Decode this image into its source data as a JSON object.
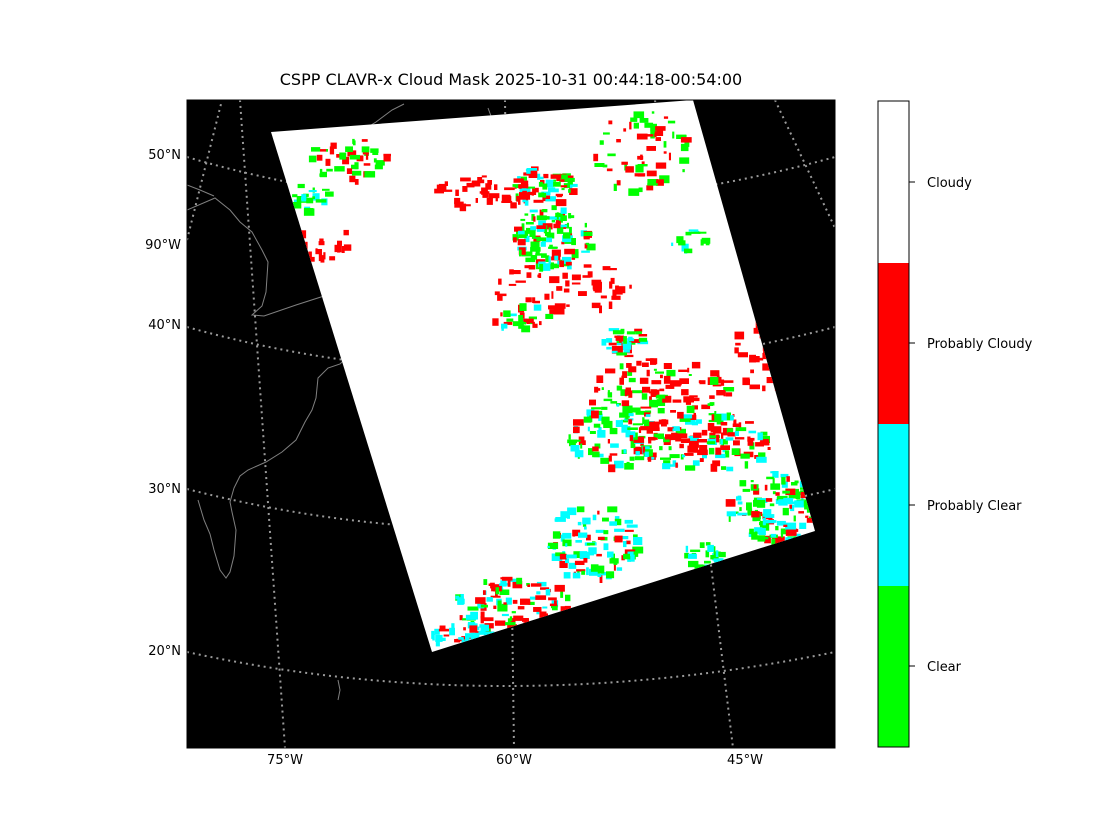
{
  "title": "CSPP CLAVR-x Cloud Mask 2025-10-31 00:44:18-00:54:00",
  "map": {
    "background_color": "#000000",
    "coastline_color": "#808080",
    "graticule_color": "#9a9a9a",
    "graticule_style": "dotted",
    "lat_labels": [
      "50°N",
      "90°W",
      "40°N",
      "30°N",
      "20°N"
    ],
    "lon_labels": [
      "75°W",
      "60°W",
      "45°W"
    ],
    "swath_base_class": "Cloudy"
  },
  "colorbar": {
    "classes": [
      {
        "label": "Cloudy",
        "color": "#ffffff"
      },
      {
        "label": "Probably Cloudy",
        "color": "#ff0000"
      },
      {
        "label": "Probably Clear",
        "color": "#00ffff"
      },
      {
        "label": "Clear",
        "color": "#00ff00"
      }
    ]
  }
}
